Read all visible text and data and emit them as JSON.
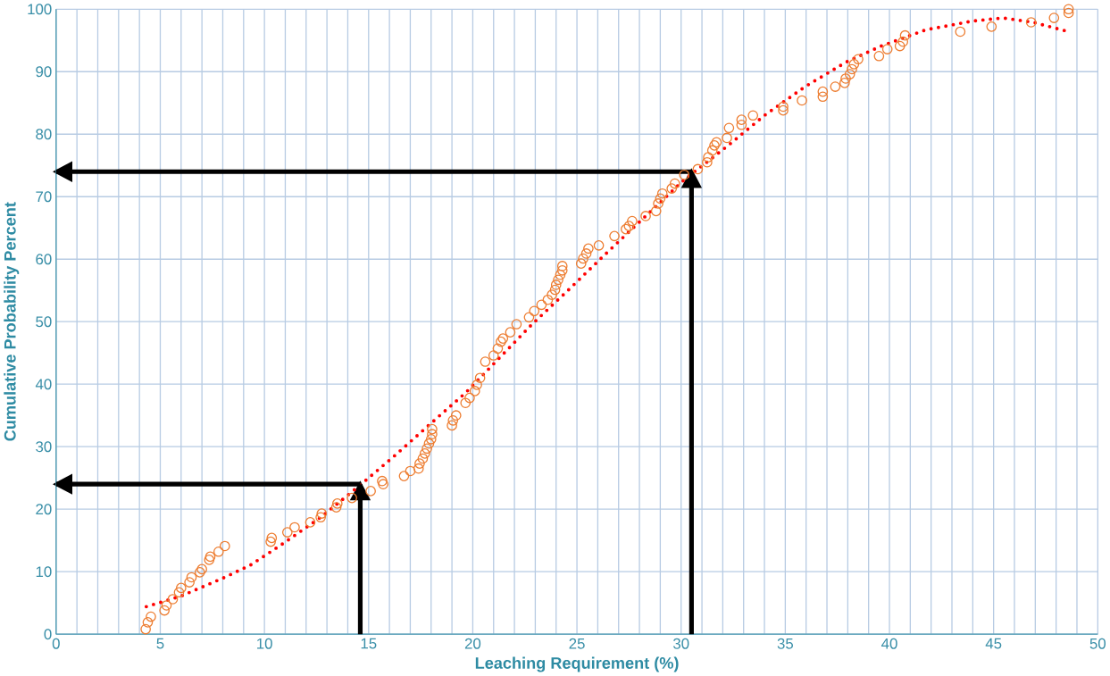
{
  "chart_data": {
    "type": "scatter",
    "xlabel": "Leaching Requirement (%)",
    "ylabel": "Cumulative Probability Percent",
    "xlim": [
      0,
      50
    ],
    "ylim": [
      0,
      100
    ],
    "xticks": [
      0,
      5,
      10,
      15,
      20,
      25,
      30,
      35,
      40,
      45,
      50
    ],
    "yticks": [
      0,
      10,
      20,
      30,
      40,
      50,
      60,
      70,
      80,
      90,
      100
    ],
    "grid": true,
    "series": [
      {
        "marker": "circle",
        "color": "#ed7d31",
        "x": [
          4.3,
          4.4,
          4.55,
          5.2,
          5.3,
          5.6,
          5.9,
          6.0,
          6.4,
          6.5,
          6.9,
          7.0,
          7.35,
          7.4,
          7.8,
          8.1,
          10.3,
          10.35,
          11.1,
          11.45,
          12.2,
          12.7,
          12.75,
          13.45,
          13.5,
          14.2,
          15.1,
          15.7,
          15.65,
          16.7,
          17.0,
          17.4,
          17.45,
          17.6,
          17.7,
          17.8,
          17.9,
          18.0,
          18.05,
          18.05,
          19.0,
          19.05,
          19.2,
          19.65,
          19.85,
          20.1,
          20.2,
          20.35,
          20.6,
          21.0,
          21.2,
          21.35,
          21.45,
          21.8,
          22.1,
          22.7,
          22.95,
          23.3,
          23.6,
          23.8,
          23.95,
          24.0,
          24.1,
          24.2,
          24.3,
          24.3,
          25.2,
          25.3,
          25.45,
          25.55,
          26.05,
          26.8,
          27.35,
          27.5,
          27.65,
          28.3,
          28.8,
          28.9,
          29.0,
          29.1,
          29.55,
          29.7,
          30.15,
          30.8,
          31.25,
          31.3,
          31.5,
          31.6,
          31.7,
          32.2,
          32.3,
          32.9,
          32.9,
          33.45,
          34.9,
          34.9,
          35.8,
          36.8,
          36.8,
          37.4,
          37.85,
          37.9,
          38.1,
          38.2,
          38.3,
          38.5,
          39.5,
          39.9,
          40.5,
          40.65,
          40.75,
          43.4,
          44.9,
          46.8,
          47.9,
          48.6,
          48.6
        ],
        "values": [
          0.8,
          1.9,
          2.8,
          3.8,
          4.6,
          5.6,
          6.7,
          7.4,
          8.3,
          9.1,
          9.9,
          10.4,
          11.9,
          12.4,
          13.2,
          14.1,
          14.8,
          15.4,
          16.3,
          17.1,
          17.9,
          18.7,
          19.3,
          20.3,
          20.9,
          21.8,
          22.9,
          24.0,
          24.5,
          25.3,
          26.1,
          26.5,
          27.3,
          28.1,
          28.9,
          29.7,
          30.5,
          31.2,
          32.0,
          32.8,
          33.4,
          34.2,
          35.0,
          37.0,
          37.8,
          38.9,
          39.9,
          41.0,
          43.6,
          44.6,
          45.7,
          46.8,
          47.3,
          48.3,
          49.6,
          50.7,
          51.7,
          52.7,
          53.5,
          54.3,
          55.1,
          55.9,
          56.7,
          57.5,
          58.2,
          58.9,
          59.3,
          60.1,
          60.9,
          61.7,
          62.2,
          63.7,
          64.8,
          65.3,
          66.1,
          66.9,
          67.7,
          68.9,
          69.7,
          70.5,
          71.3,
          72.1,
          73.5,
          74.4,
          75.5,
          76.3,
          77.4,
          78.2,
          78.7,
          79.4,
          81.0,
          81.5,
          82.3,
          83.0,
          83.8,
          84.4,
          85.4,
          86.0,
          86.8,
          87.6,
          88.2,
          88.9,
          89.6,
          90.4,
          91.2,
          92.0,
          92.5,
          93.6,
          94.1,
          94.8,
          95.8,
          96.4,
          97.2,
          97.9,
          98.6,
          99.4,
          100.0
        ]
      },
      {
        "type": "line",
        "marker": "none",
        "line_style": "dotted",
        "color": "#ff0000",
        "x": [
          4.33,
          6.0,
          8.1,
          9.35,
          10.85,
          12.7,
          14.65,
          16.3,
          18.15,
          19.65,
          22.85,
          24.6,
          26.3,
          28.3,
          30.15,
          32.3,
          34.0,
          35.95,
          37.9,
          39.6,
          41.75,
          44.0,
          45.45,
          46.9,
          48.6
        ],
        "values": [
          4.4,
          6.1,
          9.1,
          11.1,
          14.4,
          18.7,
          24.0,
          28.7,
          34.2,
          38.6,
          49.6,
          55.1,
          60.6,
          66.9,
          72.7,
          78.3,
          83.0,
          87.6,
          91.5,
          94.1,
          96.7,
          98.1,
          98.6,
          97.9,
          96.4
        ]
      },
      {
        "type": "line",
        "marker": "none",
        "line_style": "solid",
        "color": "#000000",
        "x": [
          14.6,
          14.6
        ],
        "values": [
          0,
          24
        ]
      },
      {
        "type": "line",
        "marker": "none",
        "line_style": "solid",
        "color": "#000000",
        "x": [
          14.6,
          0
        ],
        "values": [
          24,
          24
        ]
      },
      {
        "type": "line",
        "marker": "none",
        "line_style": "solid",
        "color": "#000000",
        "x": [
          30.5,
          30.5
        ],
        "values": [
          0,
          74
        ]
      },
      {
        "type": "line",
        "marker": "none",
        "line_style": "solid",
        "color": "#000000",
        "x": [
          30.5,
          0
        ],
        "values": [
          74,
          74
        ]
      }
    ]
  }
}
